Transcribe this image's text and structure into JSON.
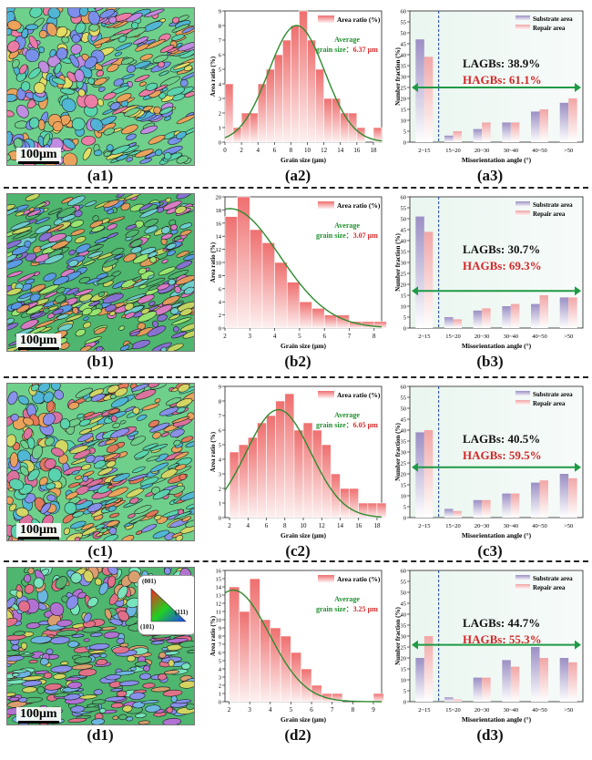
{
  "scale_bar_label": "100μm",
  "ipf_legend": {
    "top": "(001)",
    "left": "(101)",
    "right": "(111)"
  },
  "colors": {
    "bar_top": "#ef6f6f",
    "bar_bottom": "#fdf0f0",
    "fit_line": "#2e8b2e",
    "substrate_top": "#9b8fc4",
    "repair_top": "#f2a6a6",
    "annot_green": "#1f8f2e",
    "annot_red": "#d62728",
    "divider": "#222222"
  },
  "rows": [
    {
      "ebsd_label": "(a1)",
      "ebsd_palette": [
        "#6fd08c",
        "#4fb6d8",
        "#c58ae6",
        "#f0a25a",
        "#e8e064",
        "#7a8ff0",
        "#f27aa8",
        "#59d6b0"
      ],
      "hist": {
        "label": "(a2)",
        "ylabel": "Area ratio (%)",
        "xlabel": "Grain size (μm)",
        "legend": "Area ratio (%)",
        "annot_line1": "Average",
        "annot_line2": "grain size：",
        "annot_value": "6.37 μm",
        "chart_data": {
          "type": "bar",
          "bin_width": 1,
          "x": [
            0,
            1,
            2,
            3,
            4,
            5,
            6,
            7,
            8,
            9,
            10,
            11,
            12,
            13,
            14,
            15,
            16,
            17,
            18
          ],
          "values": [
            4,
            1,
            2,
            2,
            4,
            5,
            6,
            7,
            8,
            9,
            7,
            5,
            3,
            3,
            2,
            2,
            1,
            0,
            1
          ],
          "fit_mean": 8.7,
          "fit_sd": 3.4,
          "fit_peak": 8,
          "xlim": [
            0,
            19
          ],
          "ylim": [
            0,
            9
          ],
          "xticks": [
            0,
            2,
            4,
            6,
            8,
            10,
            12,
            14,
            16,
            18
          ],
          "yticks": [
            0,
            1,
            2,
            3,
            4,
            5,
            6,
            7,
            8,
            9
          ]
        }
      },
      "mis": {
        "label": "(a3)",
        "ylabel": "Number fraction (%)",
        "xlabel": "Misorientation angle (°)",
        "legend_sub": "Substrate area",
        "legend_rep": "Repair area",
        "lagb": "LAGBs:  38.9%",
        "hagb": "HAGBs:  61.1%",
        "chart_data": {
          "type": "bar",
          "categories": [
            "2~15",
            "15~20",
            "20~30",
            "30~40",
            "40~50",
            ">50"
          ],
          "series": [
            {
              "name": "Substrate area",
              "values": [
                47,
                3,
                6,
                9,
                14,
                18
              ]
            },
            {
              "name": "Repair area",
              "values": [
                39,
                5,
                9,
                9,
                15,
                20
              ]
            }
          ],
          "arrow_y": 25,
          "ylim": [
            0,
            60
          ],
          "yticks": [
            0,
            5,
            10,
            15,
            20,
            25,
            30,
            35,
            40,
            45,
            50,
            55,
            60
          ]
        }
      }
    },
    {
      "ebsd_label": "(b1)",
      "ebsd_palette": [
        "#4fb66f",
        "#8a6fd8",
        "#e07ac8",
        "#6fd0d0",
        "#c8d860",
        "#5a9be8",
        "#e89a5a",
        "#9be86f"
      ],
      "hist": {
        "label": "(b2)",
        "ylabel": "Area ratio (%)",
        "xlabel": "Grain size (μm)",
        "legend": "Area ratio (%)",
        "annot_line1": "Average",
        "annot_line2": "grain size：",
        "annot_value": "3.07 μm",
        "chart_data": {
          "type": "bar",
          "bin_width": 0.5,
          "x": [
            2,
            2.5,
            3,
            3.5,
            4,
            4.5,
            5,
            5.5,
            6,
            6.5,
            7,
            7.5,
            8
          ],
          "values": [
            17,
            20,
            15,
            13,
            10,
            7,
            4,
            3,
            2,
            2,
            1,
            1,
            1
          ],
          "fit_mean": 2.2,
          "fit_sd": 2.0,
          "fit_peak": 18.2,
          "xlim": [
            2,
            8.3
          ],
          "ylim": [
            0,
            20
          ],
          "xticks": [
            2,
            3,
            4,
            5,
            6,
            7,
            8
          ],
          "yticks": [
            0,
            2,
            4,
            6,
            8,
            10,
            12,
            14,
            16,
            18,
            20
          ]
        }
      },
      "mis": {
        "label": "(b3)",
        "ylabel": "Number fraction (%)",
        "xlabel": "Misorientation angle (°)",
        "legend_sub": "Substrate area",
        "legend_rep": "Repair area",
        "lagb": "LAGBs:  30.7%",
        "hagb": "HAGBs:  69.3%",
        "chart_data": {
          "type": "bar",
          "categories": [
            "2~15",
            "15~20",
            "20~30",
            "30~40",
            "40~50",
            ">50"
          ],
          "series": [
            {
              "name": "Substrate area",
              "values": [
                51,
                5,
                8,
                10,
                11,
                14
              ]
            },
            {
              "name": "Repair area",
              "values": [
                44,
                4,
                9,
                11,
                15,
                14
              ]
            }
          ],
          "arrow_y": 17,
          "ylim": [
            0,
            60
          ],
          "yticks": [
            0,
            5,
            10,
            15,
            20,
            25,
            30,
            35,
            40,
            45,
            50,
            55,
            60
          ]
        }
      }
    },
    {
      "ebsd_label": "(c1)",
      "ebsd_palette": [
        "#6fd08c",
        "#f0a25a",
        "#4fb6d8",
        "#e06fa0",
        "#d8d864",
        "#8a8ff0",
        "#59d6b0",
        "#e8765a"
      ],
      "hist": {
        "label": "(c2)",
        "ylabel": "Area ratio (%)",
        "xlabel": "Grain size (μm)",
        "legend": "Area ratio (%)",
        "annot_line1": "Average",
        "annot_line2": "grain size：",
        "annot_value": "6.05 μm",
        "chart_data": {
          "type": "bar",
          "bin_width": 1,
          "x": [
            2,
            3,
            4,
            5,
            6,
            7,
            8,
            9,
            10,
            11,
            12,
            13,
            14,
            15,
            16,
            17,
            18
          ],
          "values": [
            4.5,
            5,
            5.5,
            6.5,
            7,
            8,
            8.5,
            6,
            6.5,
            6,
            5,
            3,
            2,
            2,
            1,
            1,
            1
          ],
          "fit_mean": 7.3,
          "fit_sd": 3.5,
          "fit_peak": 7.4,
          "xlim": [
            1.5,
            18.5
          ],
          "ylim": [
            0,
            9
          ],
          "xticks": [
            2,
            4,
            6,
            8,
            10,
            12,
            14,
            16,
            18
          ],
          "yticks": [
            0,
            1,
            2,
            3,
            4,
            5,
            6,
            7,
            8,
            9
          ]
        }
      },
      "mis": {
        "label": "(c3)",
        "ylabel": "Number fraction (%)",
        "xlabel": "Misorientation angle (°)",
        "legend_sub": "Substrate area",
        "legend_rep": "Repair area",
        "lagb": "LAGBs:  40.5%",
        "hagb": "HAGBs:  59.5%",
        "chart_data": {
          "type": "bar",
          "categories": [
            "2~15",
            "15~20",
            "20~30",
            "30~40",
            "40~50",
            ">50"
          ],
          "series": [
            {
              "name": "Substrate area",
              "values": [
                39,
                4,
                8,
                11,
                16,
                20
              ]
            },
            {
              "name": "Repair area",
              "values": [
                40,
                3,
                8,
                11,
                17,
                18
              ]
            }
          ],
          "arrow_y": 23,
          "ylim": [
            0,
            60
          ],
          "yticks": [
            0,
            5,
            10,
            15,
            20,
            25,
            30,
            35,
            40,
            45,
            50,
            55,
            60
          ]
        }
      }
    },
    {
      "ebsd_label": "(d1)",
      "ebsd_palette": [
        "#4fb66f",
        "#b86fd8",
        "#e0a06f",
        "#6fb6e8",
        "#d8d860",
        "#e86f8a",
        "#7ae8c0",
        "#8a8ff0"
      ],
      "hist": {
        "label": "(d2)",
        "ylabel": "Area ratio (%)",
        "xlabel": "Grain size (μm)",
        "legend": "Area ratio (%)",
        "annot_line1": "Average",
        "annot_line2": "grain size：",
        "annot_value": "3.25 μm",
        "chart_data": {
          "type": "bar",
          "bin_width": 0.5,
          "x": [
            2,
            2.5,
            3,
            3.5,
            4,
            4.5,
            5,
            5.5,
            6,
            6.5,
            7,
            7.5,
            8,
            8.5,
            9
          ],
          "values": [
            14,
            11,
            15,
            10,
            9,
            8,
            6,
            4,
            2,
            1,
            1,
            0,
            0,
            0,
            1
          ],
          "fit_mean": 2.2,
          "fit_sd": 1.75,
          "fit_peak": 13.6,
          "xlim": [
            1.8,
            9.4
          ],
          "ylim": [
            0,
            16
          ],
          "xticks": [
            2,
            3,
            4,
            5,
            6,
            7,
            8,
            9
          ],
          "yticks": [
            0,
            1,
            2,
            3,
            4,
            5,
            6,
            7,
            8,
            9,
            10,
            11,
            12,
            13,
            14,
            15,
            16
          ]
        }
      },
      "mis": {
        "label": "(d3)",
        "ylabel": "Number fraction (%)",
        "xlabel": "Misorientation angle (°)",
        "legend_sub": "Substrate area",
        "legend_rep": "Repair area",
        "lagb": "LAGBs:  44.7%",
        "hagb": "HAGBs:  55.3%",
        "chart_data": {
          "type": "bar",
          "categories": [
            "2~15",
            "15~20",
            "20~30",
            "30~40",
            "40~50",
            ">50"
          ],
          "series": [
            {
              "name": "Substrate area",
              "values": [
                20,
                2,
                11,
                19,
                25,
                20
              ]
            },
            {
              "name": "Repair area",
              "values": [
                30,
                1,
                11,
                16,
                20,
                18
              ]
            }
          ],
          "arrow_y": 26,
          "ylim": [
            0,
            60
          ],
          "yticks": [
            0,
            5,
            10,
            15,
            20,
            25,
            30,
            35,
            40,
            45,
            50,
            55,
            60
          ]
        }
      }
    }
  ]
}
